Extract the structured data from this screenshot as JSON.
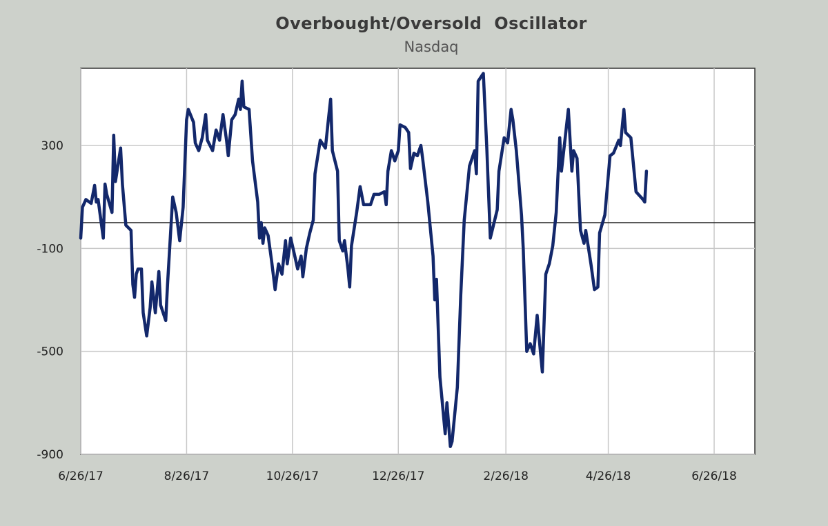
{
  "chart_data": {
    "type": "line",
    "title": "Overbought/Oversold  Oscillator",
    "subtitle": "Nasdaq",
    "xlabel": "",
    "ylabel": "",
    "ylim": [
      -900,
      600
    ],
    "yticks": [
      300,
      -100,
      -500,
      -900
    ],
    "xticks": [
      "6/26/17",
      "8/26/17",
      "10/26/17",
      "12/26/17",
      "2/26/18",
      "4/26/18",
      "6/26/18"
    ],
    "zero_line": 0,
    "grid": true,
    "series": [
      {
        "color": "#13286b",
        "points": [
          [
            "2017-06-26",
            -60
          ],
          [
            "2017-06-27",
            60
          ],
          [
            "2017-06-29",
            90
          ],
          [
            "2017-07-02",
            75
          ],
          [
            "2017-07-04",
            145
          ],
          [
            "2017-07-05",
            80
          ],
          [
            "2017-07-06",
            90
          ],
          [
            "2017-07-09",
            -60
          ],
          [
            "2017-07-10",
            150
          ],
          [
            "2017-07-11",
            110
          ],
          [
            "2017-07-14",
            40
          ],
          [
            "2017-07-15",
            340
          ],
          [
            "2017-07-16",
            160
          ],
          [
            "2017-07-19",
            290
          ],
          [
            "2017-07-20",
            150
          ],
          [
            "2017-07-22",
            -10
          ],
          [
            "2017-07-25",
            -30
          ],
          [
            "2017-07-26",
            -240
          ],
          [
            "2017-07-27",
            -290
          ],
          [
            "2017-07-28",
            -200
          ],
          [
            "2017-07-29",
            -180
          ],
          [
            "2017-07-31",
            -180
          ],
          [
            "2017-08-01",
            -350
          ],
          [
            "2017-08-03",
            -440
          ],
          [
            "2017-08-05",
            -330
          ],
          [
            "2017-08-06",
            -230
          ],
          [
            "2017-08-08",
            -350
          ],
          [
            "2017-08-10",
            -190
          ],
          [
            "2017-08-11",
            -320
          ],
          [
            "2017-08-14",
            -380
          ],
          [
            "2017-08-15",
            -240
          ],
          [
            "2017-08-18",
            100
          ],
          [
            "2017-08-20",
            40
          ],
          [
            "2017-08-22",
            -70
          ],
          [
            "2017-08-24",
            60
          ],
          [
            "2017-08-26",
            400
          ],
          [
            "2017-08-27",
            440
          ],
          [
            "2017-08-30",
            390
          ],
          [
            "2017-08-31",
            310
          ],
          [
            "2017-09-02",
            280
          ],
          [
            "2017-09-04",
            330
          ],
          [
            "2017-09-06",
            420
          ],
          [
            "2017-09-07",
            320
          ],
          [
            "2017-09-10",
            280
          ],
          [
            "2017-09-12",
            360
          ],
          [
            "2017-09-14",
            320
          ],
          [
            "2017-09-16",
            420
          ],
          [
            "2017-09-18",
            320
          ],
          [
            "2017-09-19",
            260
          ],
          [
            "2017-09-21",
            400
          ],
          [
            "2017-09-23",
            420
          ],
          [
            "2017-09-25",
            480
          ],
          [
            "2017-09-26",
            440
          ],
          [
            "2017-09-27",
            550
          ],
          [
            "2017-09-28",
            450
          ],
          [
            "2017-10-01",
            440
          ],
          [
            "2017-10-03",
            240
          ],
          [
            "2017-10-06",
            80
          ],
          [
            "2017-10-07",
            -60
          ],
          [
            "2017-10-08",
            0
          ],
          [
            "2017-10-09",
            -80
          ],
          [
            "2017-10-10",
            -20
          ],
          [
            "2017-10-12",
            -50
          ],
          [
            "2017-10-14",
            -150
          ],
          [
            "2017-10-16",
            -260
          ],
          [
            "2017-10-18",
            -160
          ],
          [
            "2017-10-20",
            -200
          ],
          [
            "2017-10-22",
            -70
          ],
          [
            "2017-10-23",
            -160
          ],
          [
            "2017-10-25",
            -60
          ],
          [
            "2017-10-27",
            -120
          ],
          [
            "2017-10-29",
            -180
          ],
          [
            "2017-10-31",
            -130
          ],
          [
            "2017-11-01",
            -210
          ],
          [
            "2017-11-03",
            -100
          ],
          [
            "2017-11-05",
            -40
          ],
          [
            "2017-11-07",
            10
          ],
          [
            "2017-11-08",
            190
          ],
          [
            "2017-11-11",
            320
          ],
          [
            "2017-11-14",
            290
          ],
          [
            "2017-11-16",
            420
          ],
          [
            "2017-11-17",
            480
          ],
          [
            "2017-11-18",
            280
          ],
          [
            "2017-11-21",
            200
          ],
          [
            "2017-11-22",
            -70
          ],
          [
            "2017-11-24",
            -110
          ],
          [
            "2017-11-25",
            -70
          ],
          [
            "2017-11-27",
            -180
          ],
          [
            "2017-11-28",
            -250
          ],
          [
            "2017-11-29",
            -90
          ],
          [
            "2017-12-02",
            40
          ],
          [
            "2017-12-04",
            140
          ],
          [
            "2017-12-06",
            70
          ],
          [
            "2017-12-10",
            70
          ],
          [
            "2017-12-12",
            110
          ],
          [
            "2017-12-15",
            110
          ],
          [
            "2017-12-18",
            120
          ],
          [
            "2017-12-19",
            70
          ],
          [
            "2017-12-20",
            200
          ],
          [
            "2017-12-22",
            280
          ],
          [
            "2017-12-24",
            240
          ],
          [
            "2017-12-26",
            280
          ],
          [
            "2017-12-27",
            380
          ],
          [
            "2017-12-30",
            370
          ],
          [
            "2018-01-01",
            350
          ],
          [
            "2018-01-02",
            210
          ],
          [
            "2018-01-04",
            270
          ],
          [
            "2018-01-06",
            260
          ],
          [
            "2018-01-08",
            300
          ],
          [
            "2018-01-09",
            250
          ],
          [
            "2018-01-12",
            80
          ],
          [
            "2018-01-15",
            -130
          ],
          [
            "2018-01-16",
            -300
          ],
          [
            "2018-01-17",
            -220
          ],
          [
            "2018-01-19",
            -600
          ],
          [
            "2018-01-22",
            -820
          ],
          [
            "2018-01-23",
            -700
          ],
          [
            "2018-01-25",
            -870
          ],
          [
            "2018-01-26",
            -850
          ],
          [
            "2018-01-29",
            -640
          ],
          [
            "2018-01-31",
            -280
          ],
          [
            "2018-02-02",
            10
          ],
          [
            "2018-02-05",
            220
          ],
          [
            "2018-02-08",
            280
          ],
          [
            "2018-02-09",
            190
          ],
          [
            "2018-02-10",
            550
          ],
          [
            "2018-02-13",
            580
          ],
          [
            "2018-02-15",
            290
          ],
          [
            "2018-02-17",
            -60
          ],
          [
            "2018-02-21",
            50
          ],
          [
            "2018-02-22",
            200
          ],
          [
            "2018-02-25",
            330
          ],
          [
            "2018-02-27",
            310
          ],
          [
            "2018-03-01",
            440
          ],
          [
            "2018-03-02",
            400
          ],
          [
            "2018-03-04",
            280
          ],
          [
            "2018-03-07",
            30
          ],
          [
            "2018-03-08",
            -100
          ],
          [
            "2018-03-10",
            -500
          ],
          [
            "2018-03-12",
            -470
          ],
          [
            "2018-03-14",
            -510
          ],
          [
            "2018-03-16",
            -360
          ],
          [
            "2018-03-18",
            -510
          ],
          [
            "2018-03-19",
            -580
          ],
          [
            "2018-03-21",
            -200
          ],
          [
            "2018-03-23",
            -160
          ],
          [
            "2018-03-25",
            -90
          ],
          [
            "2018-03-27",
            40
          ],
          [
            "2018-03-29",
            330
          ],
          [
            "2018-03-30",
            200
          ],
          [
            "2018-04-03",
            440
          ],
          [
            "2018-04-05",
            200
          ],
          [
            "2018-04-06",
            280
          ],
          [
            "2018-04-08",
            250
          ],
          [
            "2018-04-10",
            -30
          ],
          [
            "2018-04-12",
            -80
          ],
          [
            "2018-04-13",
            -30
          ],
          [
            "2018-04-16",
            -160
          ],
          [
            "2018-04-18",
            -260
          ],
          [
            "2018-04-20",
            -250
          ],
          [
            "2018-04-21",
            -40
          ],
          [
            "2018-04-24",
            30
          ],
          [
            "2018-04-27",
            260
          ],
          [
            "2018-04-29",
            270
          ],
          [
            "2018-05-02",
            320
          ],
          [
            "2018-05-03",
            300
          ],
          [
            "2018-05-05",
            440
          ],
          [
            "2018-05-06",
            350
          ],
          [
            "2018-05-09",
            330
          ],
          [
            "2018-05-12",
            120
          ],
          [
            "2018-05-16",
            90
          ],
          [
            "2018-05-17",
            80
          ],
          [
            "2018-05-18",
            200
          ]
        ]
      }
    ]
  }
}
